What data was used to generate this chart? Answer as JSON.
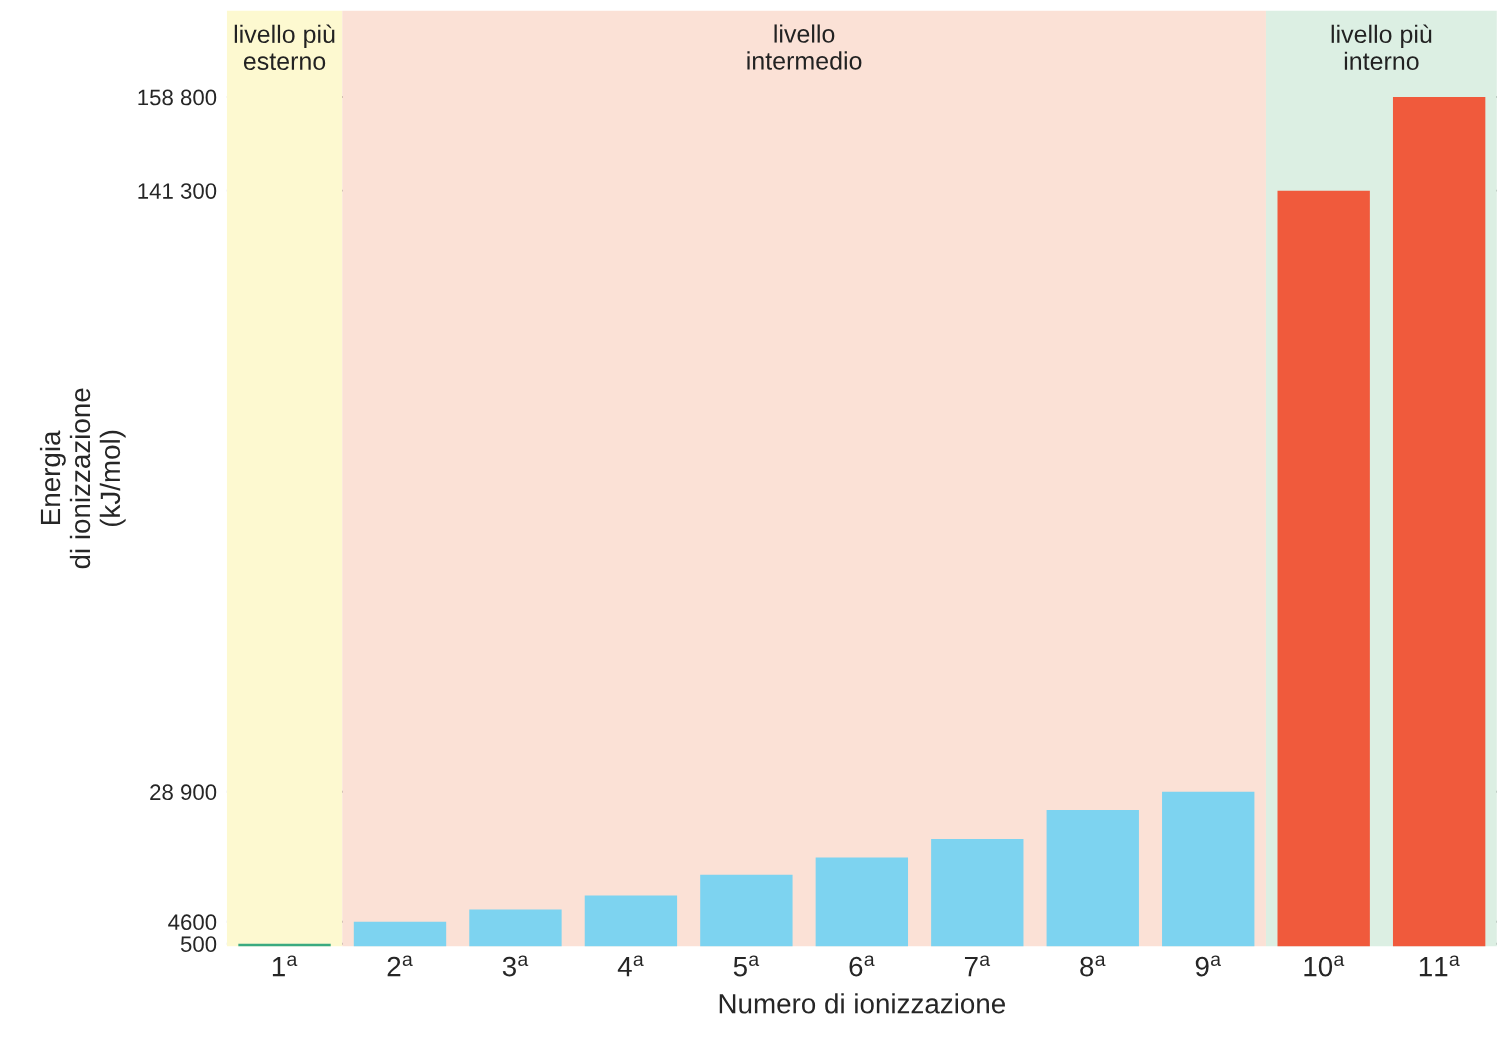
{
  "chart_data": {
    "type": "bar",
    "xlabel": "Numero di ionizzazione",
    "ylabel": "Energia\ndi ionizzazione\n(kJ/mol)",
    "categories": [
      "1$^{a}$",
      "2$^{a}$",
      "3$^{a}$",
      "4$^{a}$",
      "5$^{a}$",
      "6$^{a}$",
      "7$^{a}$",
      "8$^{a}$",
      "9$^{a}$",
      "10$^{a}$",
      "11$^{a}$"
    ],
    "values": [
      500,
      4600,
      6900,
      9500,
      13400,
      16600,
      20100,
      25500,
      28900,
      141300,
      158800
    ],
    "colors": [
      "#3aaa80",
      "#7dd3f0",
      "#7dd3f0",
      "#7dd3f0",
      "#7dd3f0",
      "#7dd3f0",
      "#7dd3f0",
      "#7dd3f0",
      "#7dd3f0",
      "#f05a3c",
      "#f05a3c"
    ],
    "ylim": [
      0,
      175000
    ],
    "yticks": [
      {
        "value": 500,
        "label": "500"
      },
      4600,
      {
        "value": 28900,
        "label": "28 900"
      },
      {
        "value": 141300,
        "label": "141 300"
      },
      {
        "value": 158800,
        "label": "158 800"
      }
    ],
    "bands": [
      {
        "axis": "x",
        "from": "1$^{a}$",
        "to": "1$^{a}$",
        "label": "livello più\nesterno",
        "color": "#fdf9d0"
      },
      {
        "axis": "x",
        "from": "2$^{a}$",
        "to": "9$^{a}$",
        "label": "livello\nintermedio",
        "color": "#fbe1d6"
      },
      {
        "axis": "x",
        "from": "10$^{a}$",
        "to": "11$^{a}$",
        "label": "livello più\ninterno",
        "color": "#dcefe3"
      }
    ],
    "grid": "y",
    "legend": false
  }
}
